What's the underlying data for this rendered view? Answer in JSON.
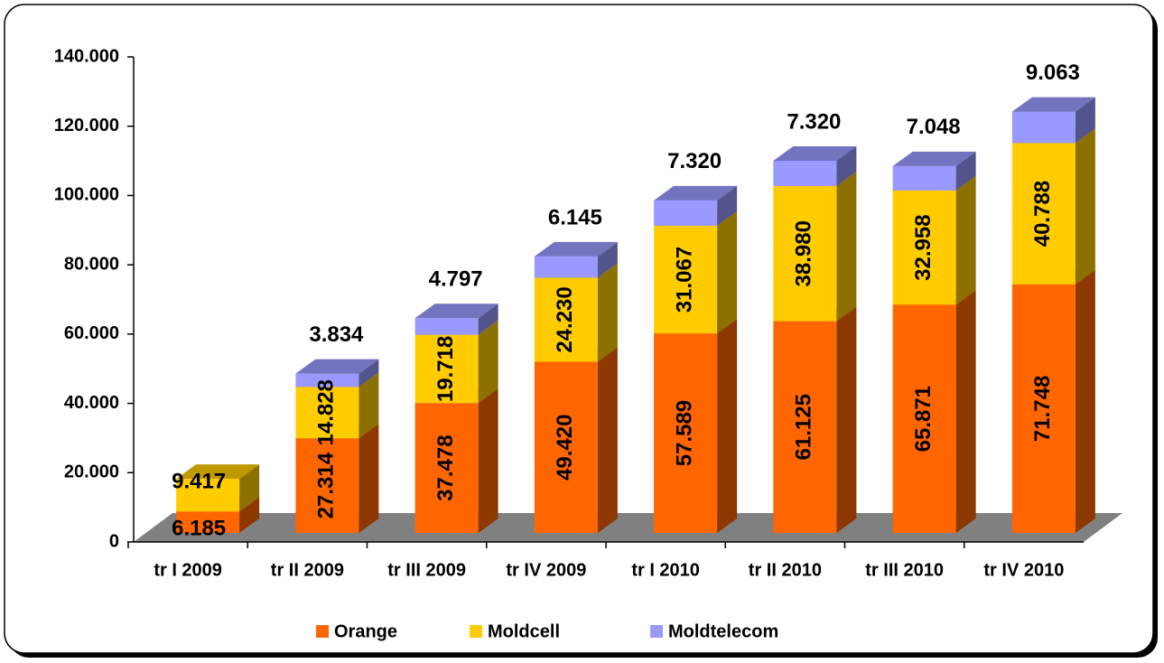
{
  "chart_data": {
    "type": "bar3d_stacked",
    "categories": [
      "tr I 2009",
      "tr II 2009",
      "tr III 2009",
      "tr IV 2009",
      "tr I 2010",
      "tr II 2010",
      "tr III 2010",
      "tr IV 2010"
    ],
    "series": [
      {
        "name": "Orange",
        "color": "#ff6600",
        "values": [
          6185,
          27314,
          37478,
          49420,
          57589,
          61125,
          65871,
          71748
        ],
        "value_labels": [
          "6.185",
          "27.314",
          "37.478",
          "49.420",
          "57.589",
          "61.125",
          "65.871",
          "71.748"
        ]
      },
      {
        "name": "Moldcell",
        "color": "#ffcc00",
        "values": [
          9417,
          14828,
          19718,
          24230,
          31067,
          38980,
          32958,
          40788
        ],
        "value_labels": [
          "9.417",
          "14.828",
          "19.718",
          "24.230",
          "31.067",
          "38.980",
          "32.958",
          "40.788"
        ]
      },
      {
        "name": "Moldtelecom",
        "color": "#9999ff",
        "values": [
          null,
          3834,
          4797,
          6145,
          7320,
          7320,
          7048,
          9063
        ],
        "value_labels": [
          null,
          "3.834",
          "4.797",
          "6.145",
          "7.320",
          "7.320",
          "7.048",
          "9.063"
        ]
      }
    ],
    "ylim": [
      0,
      140000
    ],
    "yticks": [
      0,
      {
        "value": 20000,
        "label": "20.000"
      },
      {
        "value": 40000,
        "label": "40.000"
      },
      {
        "value": 60000,
        "label": "60.000"
      },
      {
        "value": 80000,
        "label": "80.000"
      },
      {
        "value": 100000,
        "label": "100.000"
      },
      {
        "value": 120000,
        "label": "120.000"
      },
      {
        "value": 140000,
        "label": "140.000"
      }
    ],
    "legend": "bottom"
  }
}
